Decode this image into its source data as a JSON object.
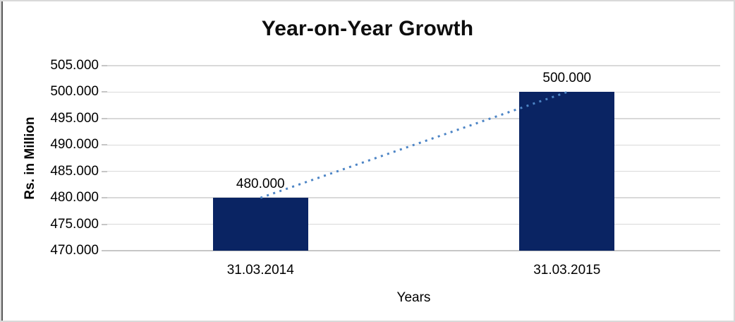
{
  "chart_data": {
    "type": "bar",
    "title": "Year-on-Year Growth",
    "xlabel": "Years",
    "ylabel": "Rs. in Million",
    "categories": [
      "31.03.2014",
      "31.03.2015"
    ],
    "values": [
      480,
      500
    ],
    "value_labels": [
      "480.000",
      "500.000"
    ],
    "ylim": [
      470,
      505
    ],
    "y_ticks": [
      {
        "value": 505,
        "label": "505.000"
      },
      {
        "value": 500,
        "label": "500.000"
      },
      {
        "value": 495,
        "label": "495.000"
      },
      {
        "value": 490,
        "label": "490.000"
      },
      {
        "value": 485,
        "label": "485.000"
      },
      {
        "value": 480,
        "label": "480.000"
      },
      {
        "value": 475,
        "label": "475.000"
      },
      {
        "value": 470,
        "label": "470.000"
      }
    ],
    "grid": true,
    "legend": false,
    "bar_color": "#0a2463",
    "gridline_color": "#d9d9d9",
    "axis_line_color": "#c6c6c6",
    "tick_mark_color": "#c6c6c6",
    "trendline": {
      "style": "dotted",
      "color": "#4c84c5",
      "width": 3
    }
  }
}
